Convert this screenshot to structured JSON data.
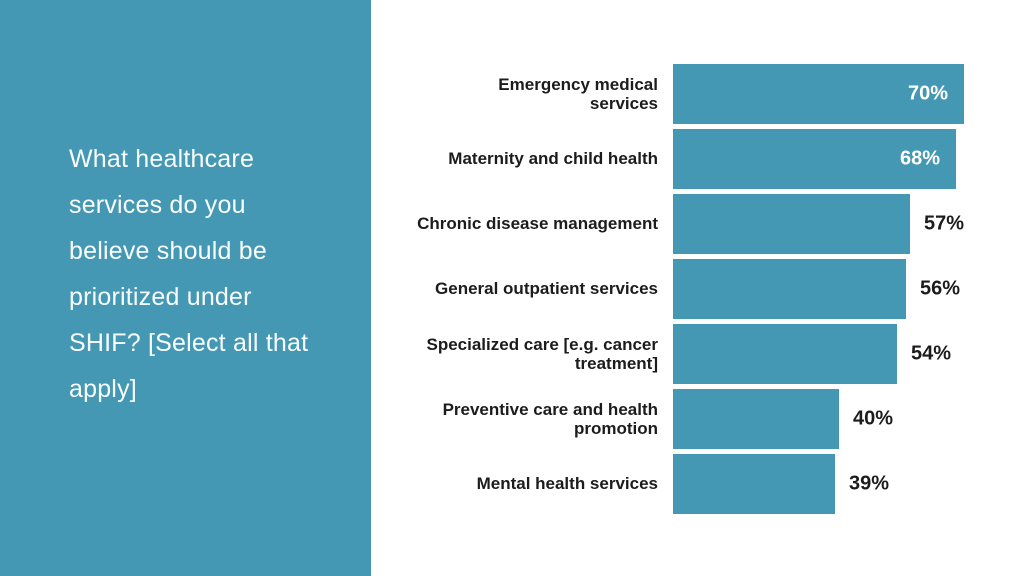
{
  "colors": {
    "accent": "#4598B3",
    "panel_background": "#4598B3",
    "bar_fill": "#4598B3",
    "question_text": "#fafdfd",
    "label_text": "#1c1c1c",
    "value_inside_text": "#ffffff",
    "value_outside_text": "#1c1c1c",
    "slide_background": "#ffffff"
  },
  "panel": {
    "question_full": "What healthcare services do you believe should be prioritized under SHIF? [Select all that apply]",
    "question_lines": [
      "What healthcare",
      "services do you",
      "believe should be",
      "prioritized under",
      "SHIF? [Select all that",
      "apply]"
    ]
  },
  "chart_data": {
    "type": "bar",
    "orientation": "horizontal",
    "title": "",
    "xlabel": "",
    "ylabel": "",
    "axis_hidden": true,
    "grid": false,
    "legend": false,
    "xlim": [
      0,
      70
    ],
    "categories": [
      "Emergency medical services",
      "Maternity and child health",
      "Chronic disease management",
      "General outpatient services",
      "Specialized care [e.g. cancer treatment]",
      "Preventive care and health promotion",
      "Mental health services"
    ],
    "label_lines": [
      [
        "Emergency medical",
        "services"
      ],
      [
        "Maternity and child health"
      ],
      [
        "Chronic disease management"
      ],
      [
        "General outpatient services"
      ],
      [
        "Specialized care [e.g. cancer",
        "treatment]"
      ],
      [
        "Preventive care and health",
        "promotion"
      ],
      [
        "Mental health services"
      ]
    ],
    "values": [
      70,
      68,
      57,
      56,
      54,
      40,
      39
    ],
    "value_labels": [
      "70%",
      "68%",
      "57%",
      "56%",
      "54%",
      "40%",
      "39%"
    ],
    "value_label_inside": [
      true,
      true,
      false,
      false,
      false,
      false,
      false
    ]
  }
}
